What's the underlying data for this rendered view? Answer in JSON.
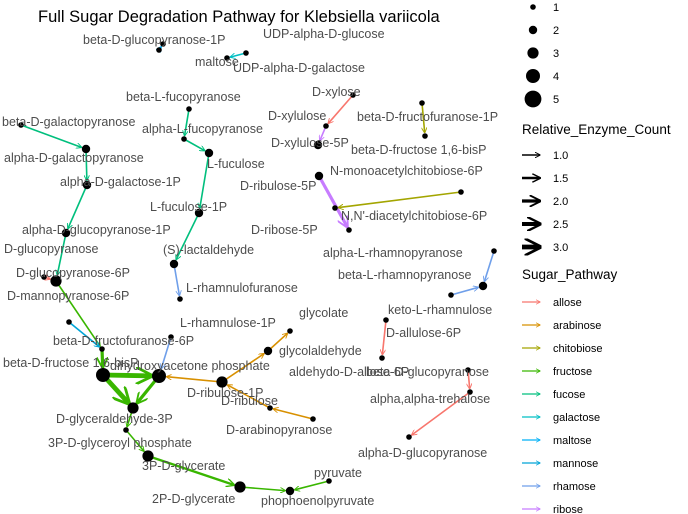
{
  "title": "Full Sugar Degradation Pathway for Klebsiella variicola",
  "legend": {
    "size_title": "",
    "size_entries": [
      "1",
      "2",
      "3",
      "4",
      "5"
    ],
    "enzyme_title": "Relative_Enzyme_Count",
    "enzyme_entries": [
      "1.0",
      "1.5",
      "2.0",
      "2.5",
      "3.0"
    ],
    "pathway_title": "Sugar_Pathway",
    "pathway_entries": [
      {
        "label": "allose",
        "color": "#F8766D"
      },
      {
        "label": "arabinose",
        "color": "#D89000"
      },
      {
        "label": "chitobiose",
        "color": "#A3A500"
      },
      {
        "label": "fructose",
        "color": "#39B600"
      },
      {
        "label": "fucose",
        "color": "#00BF7D"
      },
      {
        "label": "galactose",
        "color": "#00BFC4"
      },
      {
        "label": "maltose",
        "color": "#00B0F6"
      },
      {
        "label": "mannose",
        "color": "#00A5D8"
      },
      {
        "label": "rhamose",
        "color": "#6F9FEA"
      },
      {
        "label": "ribose",
        "color": "#C77CFF"
      }
    ]
  },
  "nodes": [
    {
      "id": "n01",
      "label": "beta-D-glucopyranose-1P"
    },
    {
      "id": "n02",
      "label": "maltose"
    },
    {
      "id": "n03",
      "label": "UDP-alpha-D-glucose"
    },
    {
      "id": "n04",
      "label": "UDP-alpha-D-galactose"
    },
    {
      "id": "n05",
      "label": "beta-L-fucopyranose"
    },
    {
      "id": "n06",
      "label": "alpha-L-fucopyranose"
    },
    {
      "id": "n07",
      "label": "L-fuculose"
    },
    {
      "id": "n08",
      "label": "L-fuculose-1P"
    },
    {
      "id": "n09",
      "label": "beta-D-galactopyranose"
    },
    {
      "id": "n10",
      "label": "alpha-D-galactopyranose"
    },
    {
      "id": "n11",
      "label": "alpha-D-galactose-1P"
    },
    {
      "id": "n12",
      "label": "alpha-D-glucopyranose-1P"
    },
    {
      "id": "n13",
      "label": "D-glucopyranose"
    },
    {
      "id": "n14",
      "label": "D-glucopyranose-6P"
    },
    {
      "id": "n15",
      "label": "D-mannopyranose-6P"
    },
    {
      "id": "n16",
      "label": "beta-D-fructofuranose-6P"
    },
    {
      "id": "n17",
      "label": "beta-D-fructose 1,6-bisP"
    },
    {
      "id": "n18",
      "label": "D-glyceraldehyde-3P"
    },
    {
      "id": "n19",
      "label": "3P-D-glyceroyl phosphate"
    },
    {
      "id": "n20",
      "label": "3P-D-glycerate"
    },
    {
      "id": "n21",
      "label": "2P-D-glycerate"
    },
    {
      "id": "n22",
      "label": "phophoenolpyruvate"
    },
    {
      "id": "n23",
      "label": "pyruvate"
    },
    {
      "id": "n24",
      "label": "(S)-lactaldehyde"
    },
    {
      "id": "n25",
      "label": "L-rhamnulofuranose"
    },
    {
      "id": "n26",
      "label": "L-rhamnulose-1P"
    },
    {
      "id": "n27",
      "label": "dihydroxyacetone phosphate"
    },
    {
      "id": "n28",
      "label": "D-ribulose-1P"
    },
    {
      "id": "n29",
      "label": "D-ribulose"
    },
    {
      "id": "n30",
      "label": "D-arabinopyranose"
    },
    {
      "id": "n31",
      "label": "glycolaldehyde"
    },
    {
      "id": "n32",
      "label": "glycolate"
    },
    {
      "id": "n33",
      "label": "aldehydo-D-allose-6P"
    },
    {
      "id": "n34",
      "label": "D-allulose-6P"
    },
    {
      "id": "n35",
      "label": "keto-L-rhamnulose"
    },
    {
      "id": "n36",
      "label": "beta-L-rhamnopyranose"
    },
    {
      "id": "n37",
      "label": "alpha-L-rhamnopyranose"
    },
    {
      "id": "n38",
      "label": "D-xylose"
    },
    {
      "id": "n39",
      "label": "D-xylulose"
    },
    {
      "id": "n40",
      "label": "D-xylulose-5P"
    },
    {
      "id": "n41",
      "label": "D-ribulose-5P"
    },
    {
      "id": "n42",
      "label": "D-ribose-5P"
    },
    {
      "id": "n43",
      "label": "beta-D-fructofuranose-1P"
    },
    {
      "id": "n44",
      "label": "beta-D-fructose 1,6-bisP"
    },
    {
      "id": "n45",
      "label": "N-monoacetylchitobiose-6P"
    },
    {
      "id": "n46",
      "label": "N,N'-diacetylchitobiose-6P"
    },
    {
      "id": "n47",
      "label": "beta-D-glucopyranose"
    },
    {
      "id": "n48",
      "label": "alpha,alpha-trehalose"
    },
    {
      "id": "n49",
      "label": "alpha-D-glucopyranose"
    }
  ]
}
